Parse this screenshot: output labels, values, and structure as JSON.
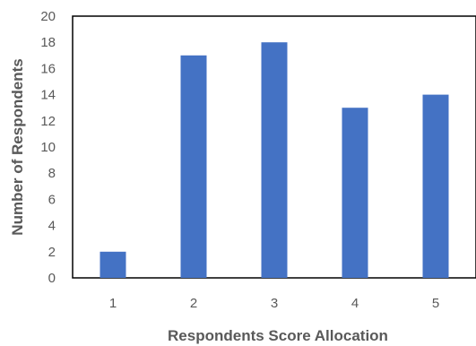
{
  "chart_data": {
    "type": "bar",
    "categories": [
      "1",
      "2",
      "3",
      "4",
      "5"
    ],
    "values": [
      2,
      17,
      18,
      13,
      14
    ],
    "title": "",
    "xlabel": "Respondents Score Allocation",
    "ylabel": "Number of Respondents",
    "ylim": [
      0,
      20
    ],
    "yticks": [
      0,
      2,
      4,
      6,
      8,
      10,
      12,
      14,
      16,
      18,
      20
    ],
    "grid": false,
    "legend": "none",
    "bar_color": "#4472C4",
    "axis_color": "#000000"
  }
}
